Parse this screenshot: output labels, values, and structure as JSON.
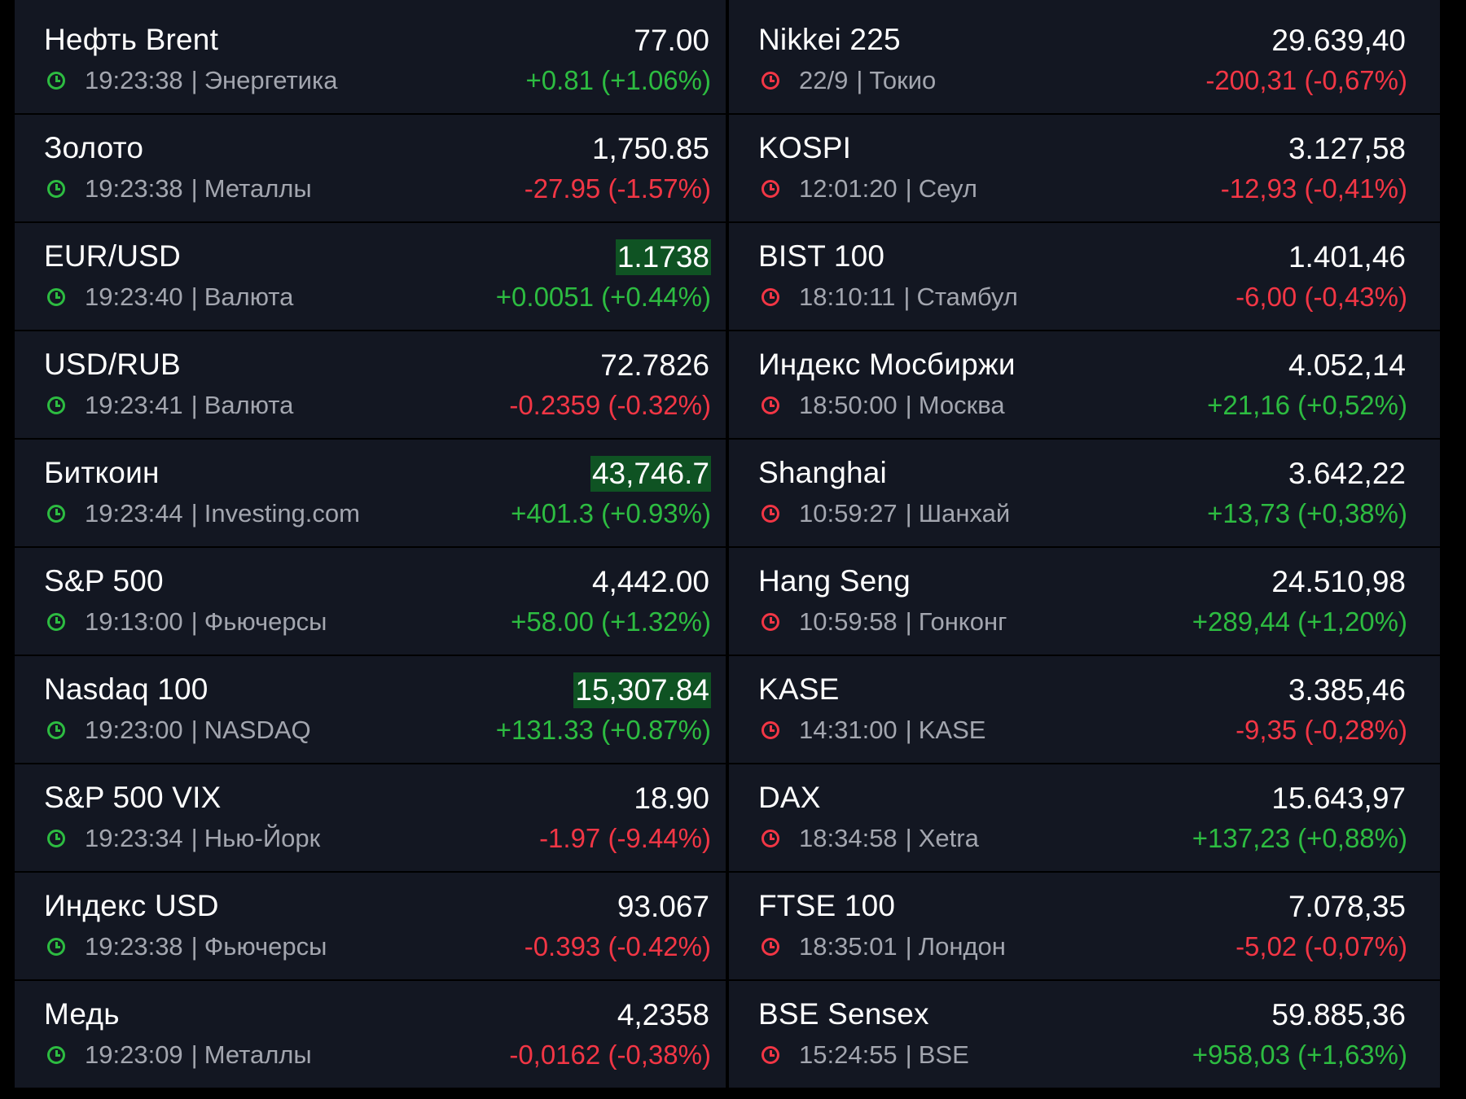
{
  "colors": {
    "background": "#000000",
    "row_background": "#131722",
    "up": "#2dbc41",
    "down": "#f23645",
    "highlight": "#0f5323",
    "meta_text": "#a3a6af"
  },
  "left_list": [
    {
      "name": "Нефть Brent",
      "time": "19:23:38",
      "group": "Энергетика",
      "price": "77.00",
      "change": "+0.81",
      "percent": "(+1.06%)",
      "dir": "up",
      "highlight": false
    },
    {
      "name": "Золото",
      "time": "19:23:38",
      "group": "Металлы",
      "price": "1,750.85",
      "change": "-27.95",
      "percent": "(-1.57%)",
      "dir": "down",
      "highlight": false
    },
    {
      "name": "EUR/USD",
      "time": "19:23:40",
      "group": "Валюта",
      "price": "1.1738",
      "change": "+0.0051",
      "percent": "(+0.44%)",
      "dir": "up",
      "highlight": true
    },
    {
      "name": "USD/RUB",
      "time": "19:23:41",
      "group": "Валюта",
      "price": "72.7826",
      "change": "-0.2359",
      "percent": "(-0.32%)",
      "dir": "down",
      "highlight": false
    },
    {
      "name": "Биткоин",
      "time": "19:23:44",
      "group": "Investing.com",
      "price": "43,746.7",
      "change": "+401.3",
      "percent": "(+0.93%)",
      "dir": "up",
      "highlight": true
    },
    {
      "name": "S&P 500",
      "time": "19:13:00",
      "group": "Фьючерсы",
      "price": "4,442.00",
      "change": "+58.00",
      "percent": "(+1.32%)",
      "dir": "up",
      "highlight": false
    },
    {
      "name": "Nasdaq 100",
      "time": "19:23:00",
      "group": "NASDAQ",
      "price": "15,307.84",
      "change": "+131.33",
      "percent": "(+0.87%)",
      "dir": "up",
      "highlight": true
    },
    {
      "name": "S&P 500 VIX",
      "time": "19:23:34",
      "group": "Нью-Йорк",
      "price": "18.90",
      "change": "-1.97",
      "percent": "(-9.44%)",
      "dir": "down",
      "highlight": false
    },
    {
      "name": "Индекс USD",
      "time": "19:23:38",
      "group": "Фьючерсы",
      "price": "93.067",
      "change": "-0.393",
      "percent": "(-0.42%)",
      "dir": "down",
      "highlight": false
    },
    {
      "name": "Медь",
      "time": "19:23:09",
      "group": "Металлы",
      "price": "4,2358",
      "change": "-0,0162",
      "percent": "(-0,38%)",
      "dir": "down",
      "highlight": false
    }
  ],
  "right_list": [
    {
      "name": "Nikkei 225",
      "time": "22/9",
      "group": "Токио",
      "price": "29.639,40",
      "change": "-200,31",
      "percent": "(-0,67%)",
      "dir": "down",
      "highlight": false
    },
    {
      "name": "KOSPI",
      "time": "12:01:20",
      "group": "Сеул",
      "price": "3.127,58",
      "change": "-12,93",
      "percent": "(-0,41%)",
      "dir": "down",
      "highlight": false
    },
    {
      "name": "BIST 100",
      "time": "18:10:11",
      "group": "Стамбул",
      "price": "1.401,46",
      "change": "-6,00",
      "percent": "(-0,43%)",
      "dir": "down",
      "highlight": false
    },
    {
      "name": "Индекс Мосбиржи",
      "time": "18:50:00",
      "group": "Москва",
      "price": "4.052,14",
      "change": "+21,16",
      "percent": "(+0,52%)",
      "dir": "up",
      "highlight": false
    },
    {
      "name": "Shanghai",
      "time": "10:59:27",
      "group": "Шанхай",
      "price": "3.642,22",
      "change": "+13,73",
      "percent": "(+0,38%)",
      "dir": "up",
      "highlight": false
    },
    {
      "name": "Hang Seng",
      "time": "10:59:58",
      "group": "Гонконг",
      "price": "24.510,98",
      "change": "+289,44",
      "percent": "(+1,20%)",
      "dir": "up",
      "highlight": false
    },
    {
      "name": "KASE",
      "time": "14:31:00",
      "group": "KASE",
      "price": "3.385,46",
      "change": "-9,35",
      "percent": "(-0,28%)",
      "dir": "down",
      "highlight": false
    },
    {
      "name": "DAX",
      "time": "18:34:58",
      "group": "Xetra",
      "price": "15.643,97",
      "change": "+137,23",
      "percent": "(+0,88%)",
      "dir": "up",
      "highlight": false
    },
    {
      "name": "FTSE 100",
      "time": "18:35:01",
      "group": "Лондон",
      "price": "7.078,35",
      "change": "-5,02",
      "percent": "(-0,07%)",
      "dir": "down",
      "highlight": false
    },
    {
      "name": "BSE Sensex",
      "time": "15:24:55",
      "group": "BSE",
      "price": "59.885,36",
      "change": "+958,03",
      "percent": "(+1,63%)",
      "dir": "up",
      "highlight": false
    }
  ],
  "icons": {
    "left_clock": "clock-icon-green",
    "right_clock": "clock-icon-red"
  }
}
